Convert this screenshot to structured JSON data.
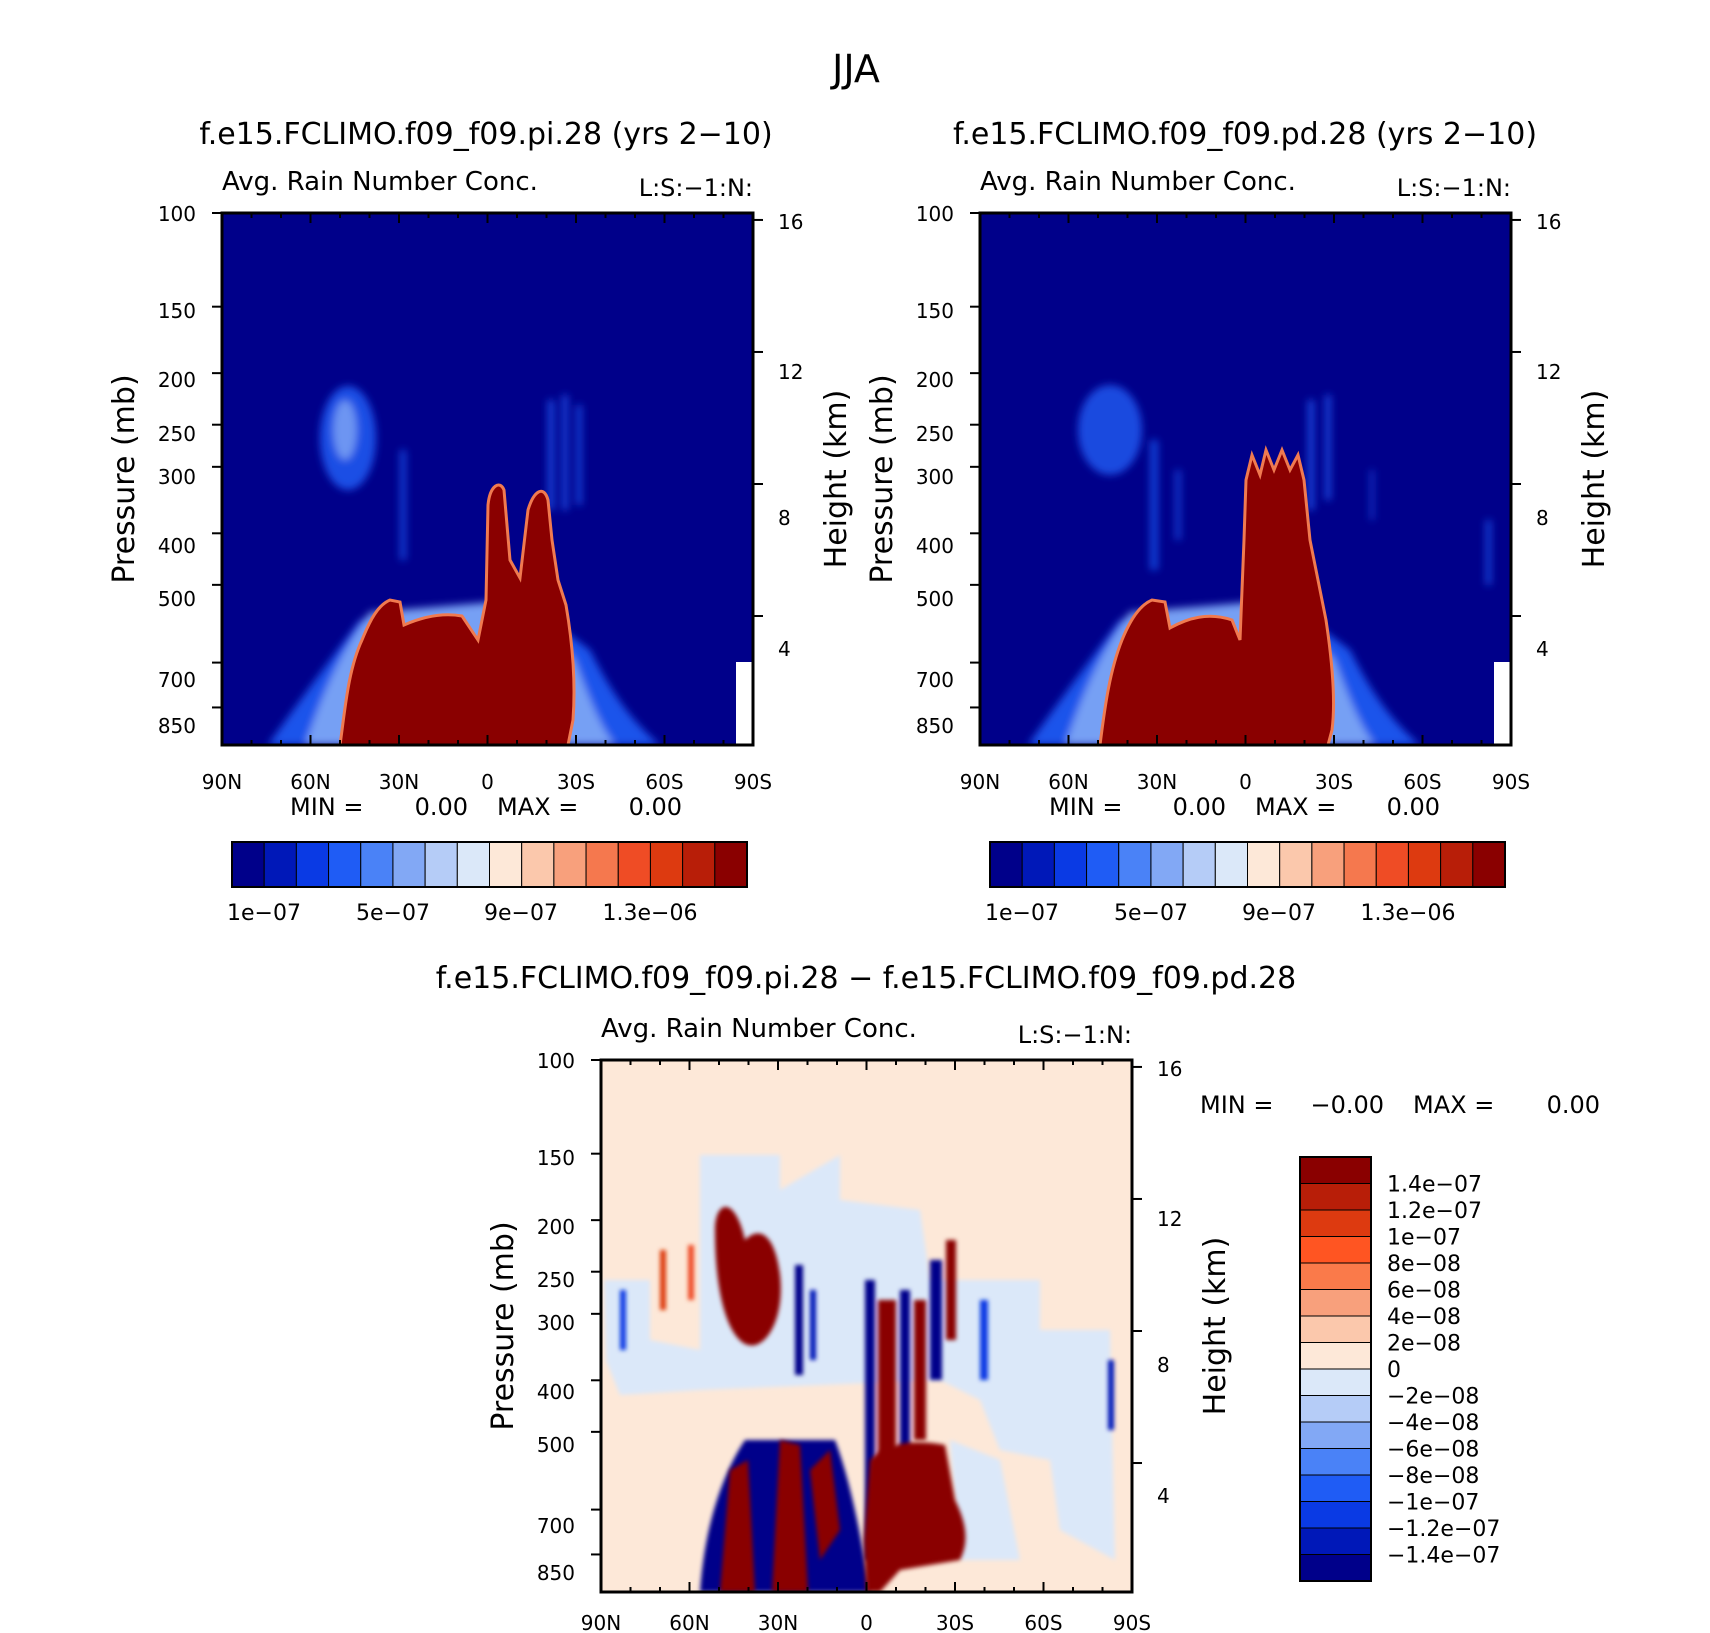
{
  "figure": {
    "title": "JJA"
  },
  "chart_data": [
    {
      "type": "heatmap",
      "title": "f.e15.FCLIMO.f09_f09.pi.28 (yrs 2−10)",
      "subtitle": "Avg. Rain Number Conc.",
      "corner_label": "L:S:−1:N:",
      "ylabel_left": "Pressure (mb)",
      "ylabel_right": "Height (km)",
      "x_ticks": [
        "90N",
        "60N",
        "30N",
        "0",
        "30S",
        "60S",
        "90S"
      ],
      "y_ticks_left": [
        "100",
        "150",
        "200",
        "250",
        "300",
        "400",
        "500",
        "700",
        "850"
      ],
      "y_ticks_left_values": [
        100,
        150,
        200,
        250,
        300,
        400,
        500,
        700,
        850
      ],
      "y_ticks_right": [
        "16",
        "12",
        "8",
        "4"
      ],
      "y_ticks_right_values": [
        16,
        12,
        8,
        4
      ],
      "ylim": [
        100,
        1000
      ],
      "y_scale": "log",
      "min_label": "MIN =",
      "min_value": "0.00",
      "max_label": "MAX =",
      "max_value": "0.00",
      "colorbar": {
        "orientation": "horizontal",
        "colors": [
          "#00008a",
          "#0018b8",
          "#0a3ae4",
          "#1f5cf5",
          "#4a82f7",
          "#82a8f5",
          "#b5ccf7",
          "#dbe8f9",
          "#fde8d8",
          "#fbc8ac",
          "#f8a07c",
          "#f5784e",
          "#ef4c25",
          "#dd3a10",
          "#b81e08",
          "#8a0000"
        ],
        "tick_labels": [
          "1e−07",
          "5e−07",
          "9e−07",
          "1.3e−06"
        ]
      }
    },
    {
      "type": "heatmap",
      "title": "f.e15.FCLIMO.f09_f09.pd.28 (yrs 2−10)",
      "subtitle": "Avg. Rain Number Conc.",
      "corner_label": "L:S:−1:N:",
      "ylabel_left": "Pressure (mb)",
      "ylabel_right": "Height (km)",
      "x_ticks": [
        "90N",
        "60N",
        "30N",
        "0",
        "30S",
        "60S",
        "90S"
      ],
      "y_ticks_left": [
        "100",
        "150",
        "200",
        "250",
        "300",
        "400",
        "500",
        "700",
        "850"
      ],
      "y_ticks_left_values": [
        100,
        150,
        200,
        250,
        300,
        400,
        500,
        700,
        850
      ],
      "y_ticks_right": [
        "16",
        "12",
        "8",
        "4"
      ],
      "y_ticks_right_values": [
        16,
        12,
        8,
        4
      ],
      "ylim": [
        100,
        1000
      ],
      "y_scale": "log",
      "min_label": "MIN =",
      "min_value": "0.00",
      "max_label": "MAX =",
      "max_value": "0.00",
      "colorbar": {
        "orientation": "horizontal",
        "colors": [
          "#00008a",
          "#0018b8",
          "#0a3ae4",
          "#1f5cf5",
          "#4a82f7",
          "#82a8f5",
          "#b5ccf7",
          "#dbe8f9",
          "#fde8d8",
          "#fbc8ac",
          "#f8a07c",
          "#f5784e",
          "#ef4c25",
          "#dd3a10",
          "#b81e08",
          "#8a0000"
        ],
        "tick_labels": [
          "1e−07",
          "5e−07",
          "9e−07",
          "1.3e−06"
        ]
      }
    },
    {
      "type": "heatmap",
      "title": "f.e15.FCLIMO.f09_f09.pi.28 − f.e15.FCLIMO.f09_f09.pd.28",
      "subtitle": "Avg. Rain Number Conc.",
      "corner_label": "L:S:−1:N:",
      "ylabel_left": "Pressure (mb)",
      "ylabel_right": "Height (km)",
      "x_ticks": [
        "90N",
        "60N",
        "30N",
        "0",
        "30S",
        "60S",
        "90S"
      ],
      "y_ticks_left": [
        "100",
        "150",
        "200",
        "250",
        "300",
        "400",
        "500",
        "700",
        "850"
      ],
      "y_ticks_left_values": [
        100,
        150,
        200,
        250,
        300,
        400,
        500,
        700,
        850
      ],
      "y_ticks_right": [
        "16",
        "12",
        "8",
        "4"
      ],
      "y_ticks_right_values": [
        16,
        12,
        8,
        4
      ],
      "ylim": [
        100,
        1000
      ],
      "y_scale": "log",
      "min_label": "MIN =",
      "min_value": "−0.00",
      "max_label": "MAX =",
      "max_value": "0.00",
      "colorbar": {
        "orientation": "vertical",
        "colors": [
          "#8a0000",
          "#b81e08",
          "#dd3a10",
          "#ff5522",
          "#fa7a4a",
          "#f8a07c",
          "#fbc8ac",
          "#fde8d8",
          "#dbe8f9",
          "#b5ccf7",
          "#82a8f5",
          "#4a82f7",
          "#1f5cf5",
          "#0a3ae4",
          "#0018b8",
          "#00008a"
        ],
        "tick_labels": [
          "1.4e−07",
          "1.2e−07",
          "1e−07",
          "8e−08",
          "6e−08",
          "4e−08",
          "2e−08",
          "0",
          "−2e−08",
          "−4e−08",
          "−6e−08",
          "−8e−08",
          "−1e−07",
          "−1.2e−07",
          "−1.4e−07"
        ]
      }
    }
  ]
}
